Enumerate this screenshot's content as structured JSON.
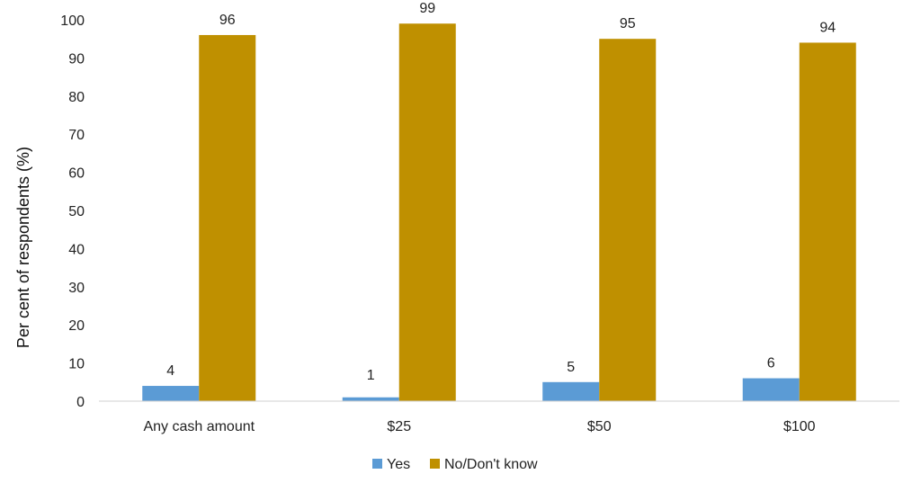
{
  "chart_data": {
    "type": "bar",
    "categories": [
      "Any cash amount",
      "$25",
      "$50",
      "$100"
    ],
    "series": [
      {
        "name": "Yes",
        "values": [
          4,
          1,
          5,
          6
        ],
        "labels": [
          "4",
          "1",
          "5",
          "6"
        ],
        "color": "#5B9BD5"
      },
      {
        "name": "No/Don't know",
        "values": [
          96,
          99,
          95,
          94
        ],
        "labels": [
          "96",
          "99",
          "95",
          "94"
        ],
        "color": "#BF9000"
      }
    ],
    "title": "",
    "xlabel": "",
    "ylabel": "Per cent of respondents (%)",
    "ylim": [
      0,
      100
    ],
    "yticks": [
      "0",
      "10",
      "20",
      "30",
      "40",
      "50",
      "60",
      "70",
      "80",
      "90",
      "100"
    ],
    "grid": false,
    "legend_position": "bottom-center"
  }
}
